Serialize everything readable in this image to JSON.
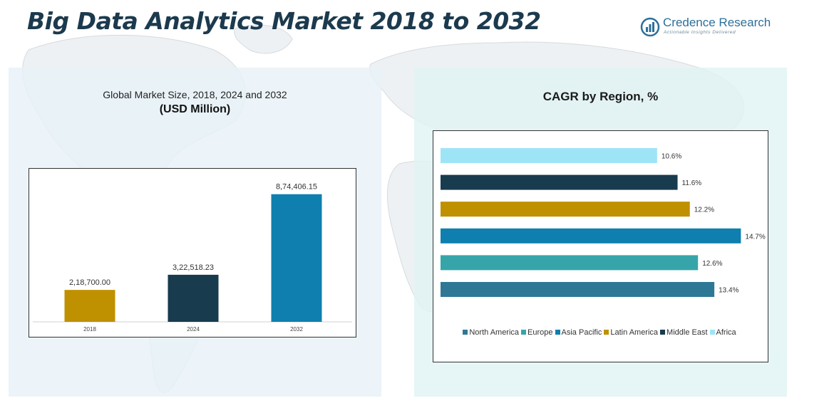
{
  "header": {
    "title": "Big Data Analytics Market 2018 to 2032",
    "brand_name": "Credence Research",
    "brand_tagline": "Actionable Insights Delivered"
  },
  "colors": {
    "title": "#1c3a4e",
    "brand": "#2d6f9a",
    "bar_2018": "#bf9000",
    "bar_2024": "#183b4e",
    "bar_2032": "#0f7fb0"
  },
  "chart_data": [
    {
      "type": "bar",
      "title": "Global Market Size, 2018, 2024 and 2032",
      "subtitle": "(USD Million)",
      "categories": [
        "2018",
        "2024",
        "2032"
      ],
      "values": [
        218700.0,
        322518.23,
        874406.15
      ],
      "value_labels": [
        "2,18,700.00",
        "3,22,518.23",
        "8,74,406.15"
      ],
      "bar_colors": [
        "#bf9000",
        "#183b4e",
        "#0f7fb0"
      ],
      "ylim": [
        0,
        1000000
      ],
      "grid": false,
      "legend": "none"
    },
    {
      "type": "bar",
      "orientation": "horizontal",
      "title": "CAGR by Region, %",
      "categories": [
        "North America",
        "Europe",
        "Asia Pacific",
        "Latin America",
        "Middle East",
        "Africa"
      ],
      "values": [
        13.4,
        12.6,
        14.7,
        12.2,
        11.6,
        10.6
      ],
      "value_labels": [
        "13.4%",
        "12.6%",
        "14.7%",
        "12.2%",
        "11.6%",
        "10.6%"
      ],
      "colors": [
        "#2e7896",
        "#36a5a9",
        "#0f7fb0",
        "#bf9000",
        "#183b4e",
        "#9ee4f7"
      ],
      "xlim": [
        0,
        15
      ],
      "grid": false,
      "legend": "bottom"
    }
  ]
}
